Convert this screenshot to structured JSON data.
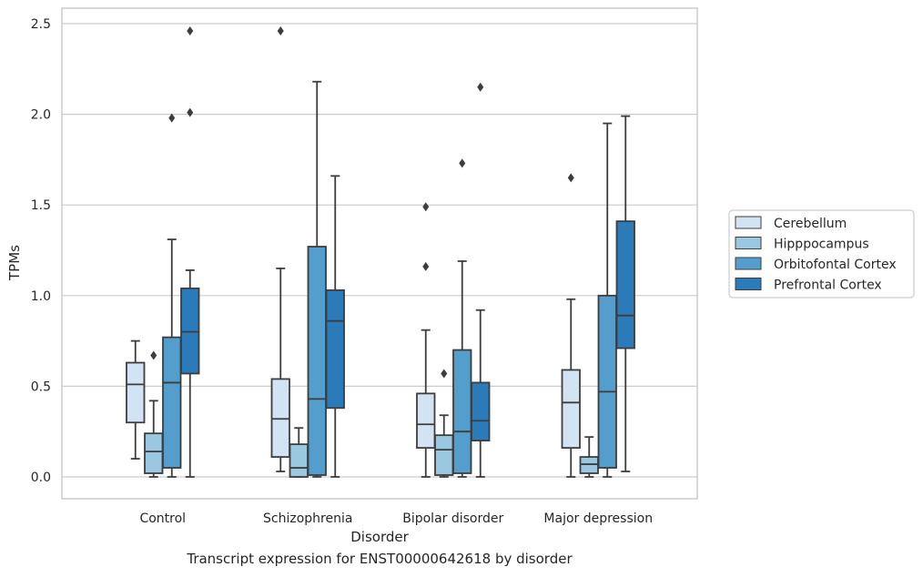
{
  "caption": "Transcript expression for ENST00000642618 by disorder",
  "chart_data": {
    "type": "boxplot",
    "xlabel": "Disorder",
    "ylabel": "TPMs",
    "ylim": [
      -0.12,
      2.6
    ],
    "yticks": [
      "0.0",
      "0.5",
      "1.0",
      "1.5",
      "2.0",
      "2.5"
    ],
    "ytick_values": [
      0,
      0.5,
      1.0,
      1.5,
      2.0,
      2.5
    ],
    "grid": "horizontal",
    "legend_position": "right",
    "categories": [
      "Control",
      "Schizophrenia",
      "Bipolar disorder",
      "Major depression"
    ],
    "series": [
      {
        "name": "Cerebellum",
        "color": "#d2e3f3",
        "boxes": [
          {
            "whislo": 0.1,
            "q1": 0.3,
            "med": 0.51,
            "q3": 0.63,
            "whishi": 0.75,
            "fliers": []
          },
          {
            "whislo": 0.03,
            "q1": 0.11,
            "med": 0.32,
            "q3": 0.54,
            "whishi": 1.15,
            "fliers": [
              2.46
            ]
          },
          {
            "whislo": 0.0,
            "q1": 0.16,
            "med": 0.29,
            "q3": 0.46,
            "whishi": 0.81,
            "fliers": [
              1.16,
              1.49
            ]
          },
          {
            "whislo": 0.0,
            "q1": 0.16,
            "med": 0.41,
            "q3": 0.59,
            "whishi": 0.98,
            "fliers": [
              1.65
            ]
          }
        ]
      },
      {
        "name": "Hipppocampus",
        "color": "#9ac8e0",
        "boxes": [
          {
            "whislo": 0.0,
            "q1": 0.02,
            "med": 0.14,
            "q3": 0.24,
            "whishi": 0.42,
            "fliers": [
              0.67
            ]
          },
          {
            "whislo": 0.0,
            "q1": 0.0,
            "med": 0.05,
            "q3": 0.18,
            "whishi": 0.27,
            "fliers": []
          },
          {
            "whislo": 0.0,
            "q1": 0.01,
            "med": 0.15,
            "q3": 0.23,
            "whishi": 0.34,
            "fliers": [
              0.57
            ]
          },
          {
            "whislo": 0.0,
            "q1": 0.02,
            "med": 0.07,
            "q3": 0.11,
            "whishi": 0.22,
            "fliers": []
          }
        ]
      },
      {
        "name": "Orbitofontal Cortex",
        "color": "#539ecd",
        "boxes": [
          {
            "whislo": 0.0,
            "q1": 0.05,
            "med": 0.52,
            "q3": 0.77,
            "whishi": 1.31,
            "fliers": [
              1.98
            ]
          },
          {
            "whislo": 0.0,
            "q1": 0.01,
            "med": 0.43,
            "q3": 1.27,
            "whishi": 2.18,
            "fliers": []
          },
          {
            "whislo": 0.0,
            "q1": 0.02,
            "med": 0.25,
            "q3": 0.7,
            "whishi": 1.19,
            "fliers": [
              1.73
            ]
          },
          {
            "whislo": 0.0,
            "q1": 0.05,
            "med": 0.47,
            "q3": 1.0,
            "whishi": 1.95,
            "fliers": []
          }
        ]
      },
      {
        "name": "Prefrontal Cortex",
        "color": "#2b7bba",
        "boxes": [
          {
            "whislo": 0.0,
            "q1": 0.57,
            "med": 0.8,
            "q3": 1.04,
            "whishi": 1.14,
            "fliers": [
              2.01,
              2.46
            ]
          },
          {
            "whislo": 0.0,
            "q1": 0.38,
            "med": 0.86,
            "q3": 1.03,
            "whishi": 1.66,
            "fliers": []
          },
          {
            "whislo": 0.0,
            "q1": 0.2,
            "med": 0.31,
            "q3": 0.52,
            "whishi": 0.92,
            "fliers": [
              2.15
            ]
          },
          {
            "whislo": 0.03,
            "q1": 0.71,
            "med": 0.89,
            "q3": 1.41,
            "whishi": 1.99,
            "fliers": []
          }
        ]
      }
    ]
  }
}
